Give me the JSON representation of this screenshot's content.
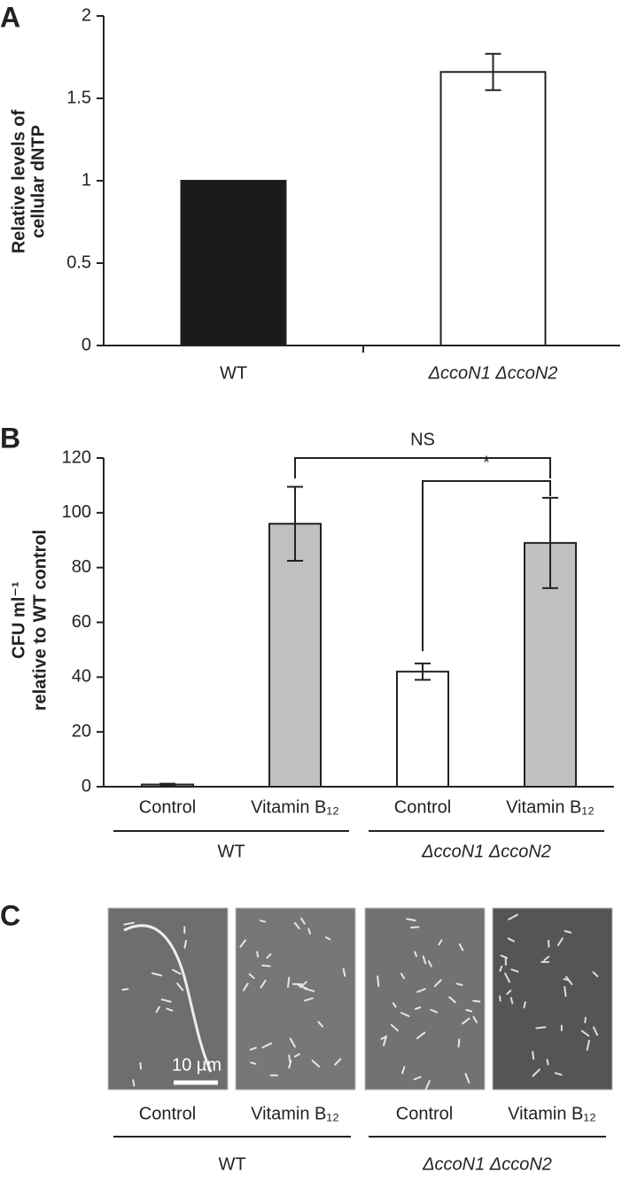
{
  "chart_data": [
    {
      "type": "bar",
      "label": "A",
      "ylabel": [
        "Relative levels of",
        "cellular dNTP"
      ],
      "categories": [
        "WT",
        "ΔccoN1 ΔccoN2"
      ],
      "values": [
        1,
        1.66
      ],
      "errors": [
        null,
        0.11
      ],
      "colors": [
        "#1a1a1a",
        "#ffffff"
      ],
      "ylim": [
        0,
        2
      ],
      "yticks": [
        0,
        0.5,
        1,
        1.5,
        2
      ]
    },
    {
      "type": "bar",
      "label": "B",
      "ylabel": [
        "CFU ml⁻¹",
        "relative to WT control"
      ],
      "categories": [
        "Control",
        "Vitamin B₁₂",
        "Control",
        "Vitamin B₁₂"
      ],
      "groups": [
        "WT",
        "ΔccoN1 ΔccoN2"
      ],
      "values": [
        0.8,
        96,
        42,
        89
      ],
      "errors": [
        0.3,
        13.5,
        3,
        16.5
      ],
      "colors": [
        "#c0c0c0",
        "#c0c0c0",
        "#ffffff",
        "#c0c0c0"
      ],
      "ylim": [
        0,
        120
      ],
      "yticks": [
        0,
        20,
        40,
        60,
        80,
        100,
        120
      ],
      "annotations": [
        "NS",
        "*"
      ]
    }
  ],
  "micrographs": {
    "label": "C",
    "scale_bar": "10 µm",
    "panels": [
      "Control",
      "Vitamin B₁₂",
      "Control",
      "Vitamin B₁₂"
    ],
    "groups": [
      "WT",
      "ΔccoN1 ΔccoN2"
    ]
  }
}
